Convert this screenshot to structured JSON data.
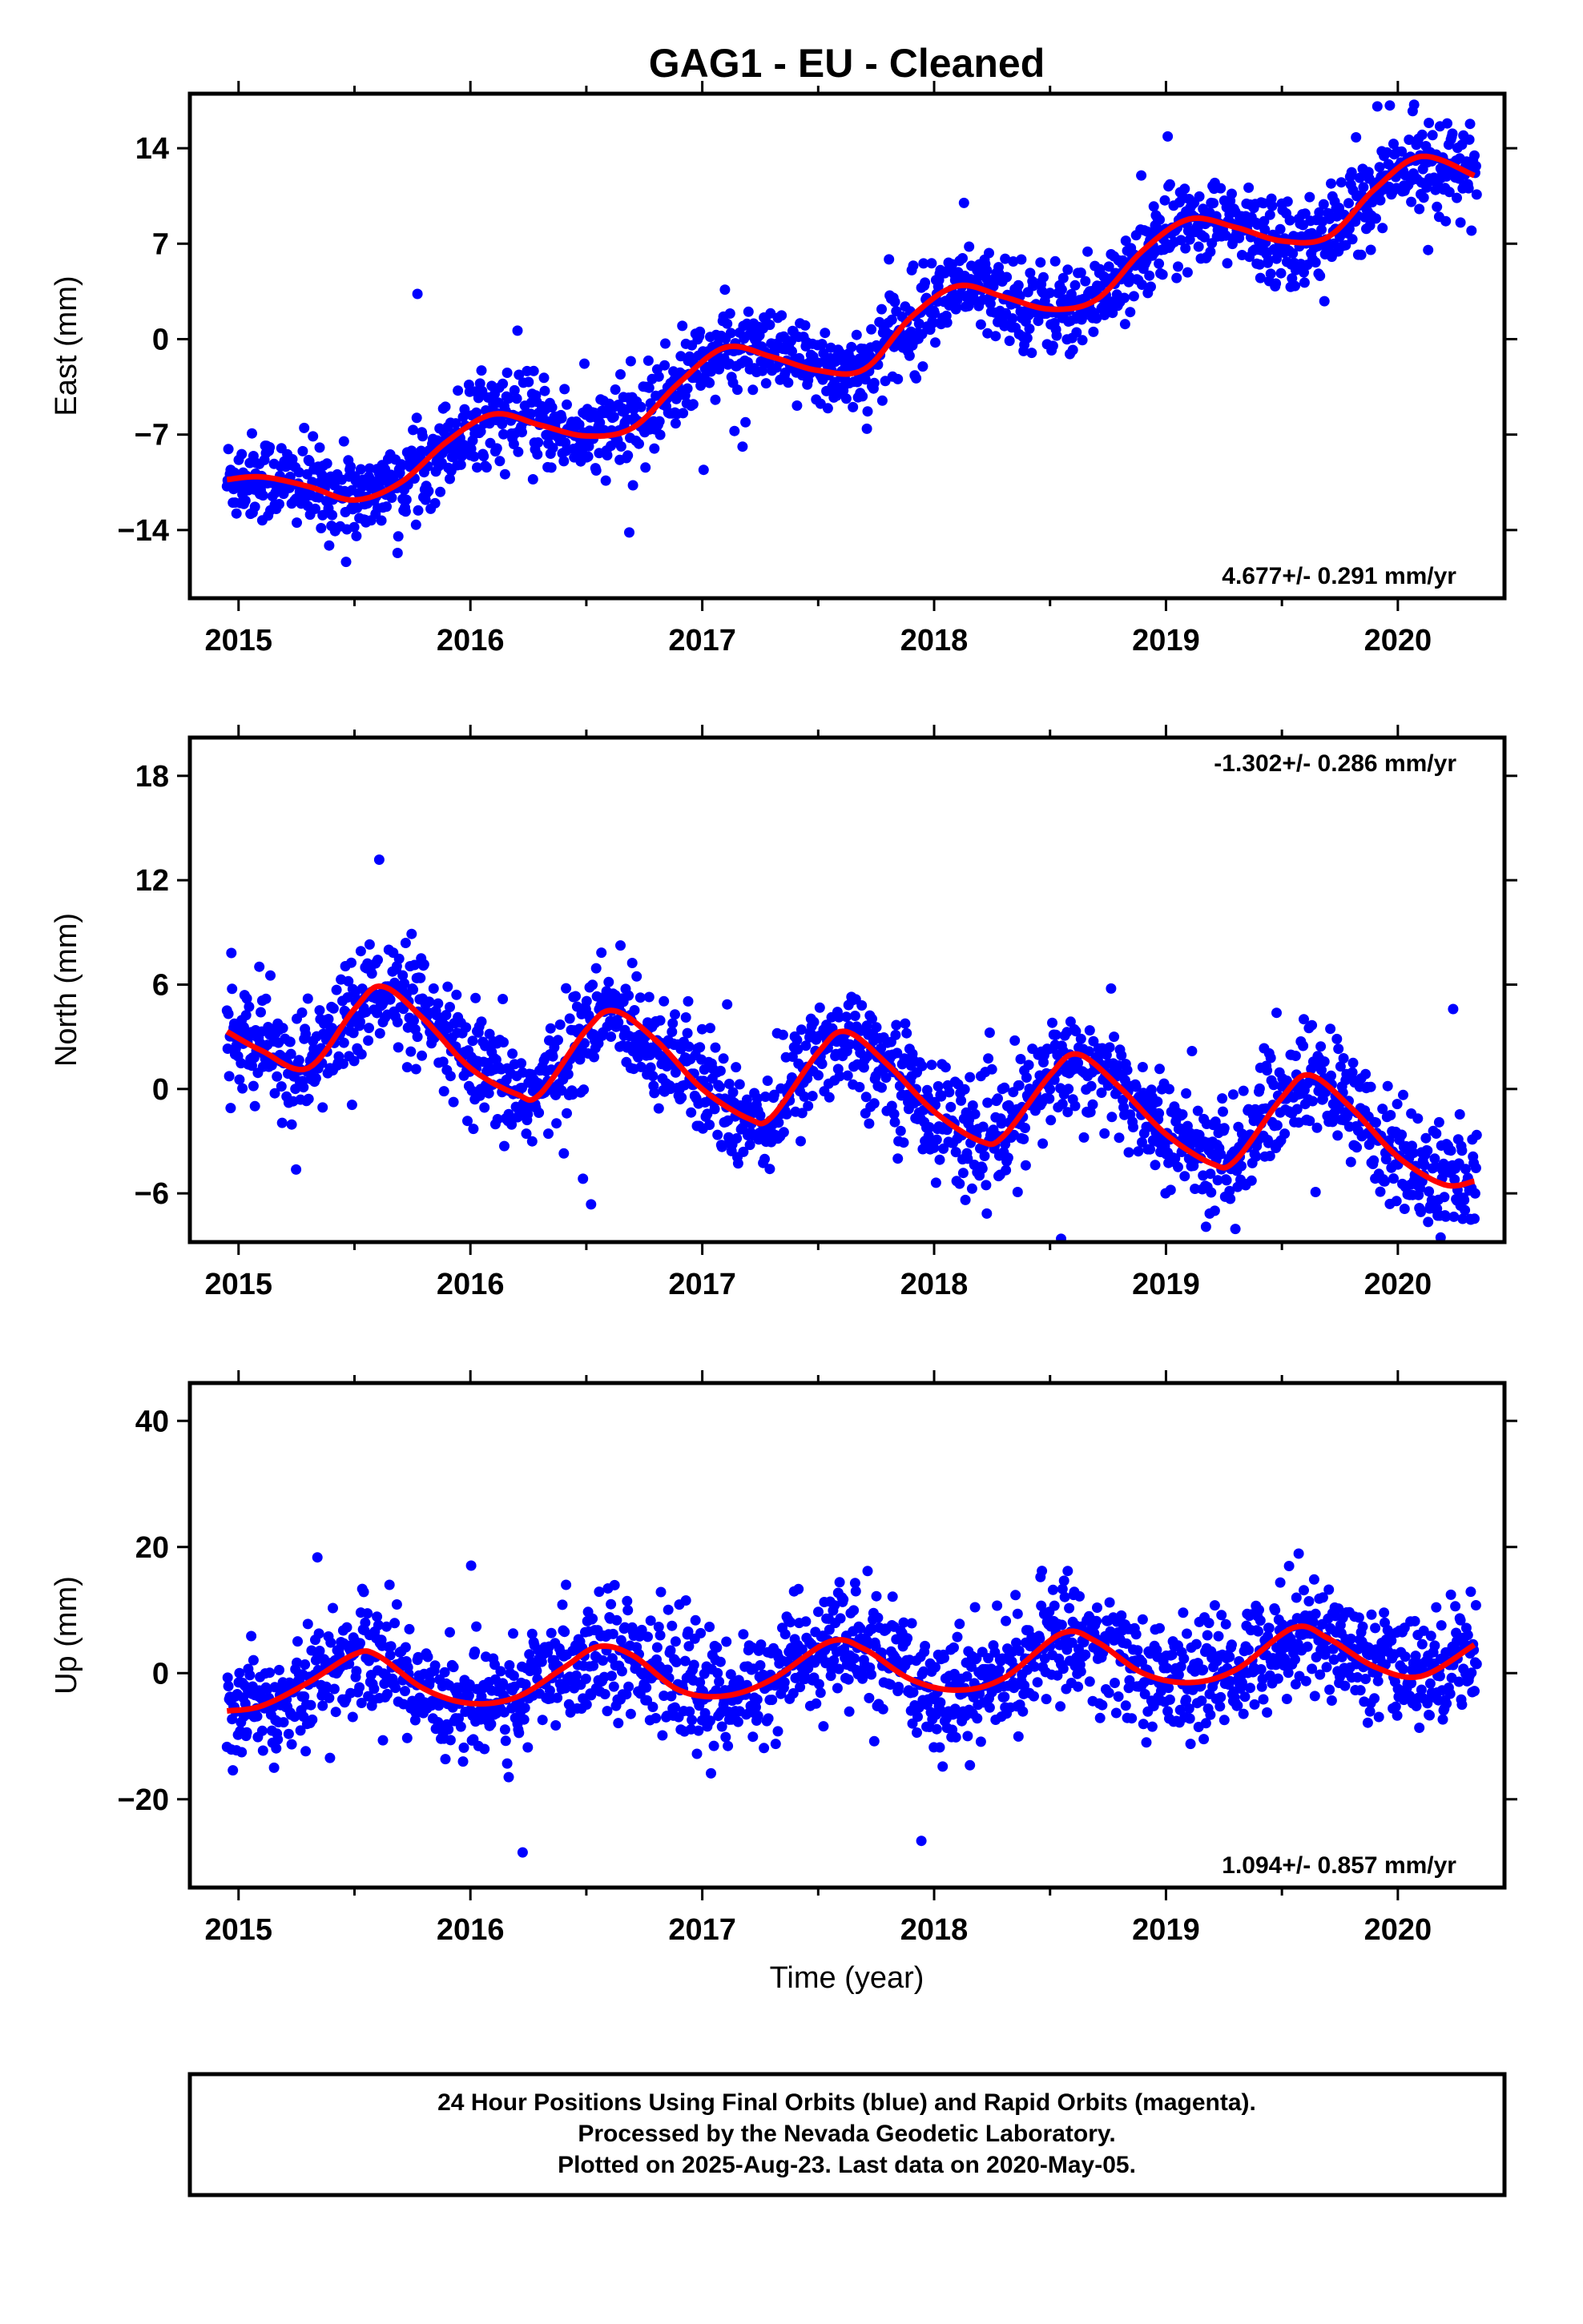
{
  "title": "GAG1  - EU - Cleaned",
  "colors": {
    "final_orbits": "#0000ff",
    "rapid_orbits": "#ff00ff",
    "model": "#ff0000",
    "frame": "#000000"
  },
  "footer": {
    "line1": "24 Hour Positions Using Final Orbits (blue) and Rapid Orbits (magenta).",
    "line2": "Processed by the Nevada Geodetic Laboratory.",
    "line3": "Plotted on 2025-Aug-23. Last data on 2020-May-05."
  },
  "chart_data": [
    {
      "type": "scatter",
      "component": "east",
      "ylabel": "East (mm)",
      "xlabel": "",
      "xlim": [
        2014.79,
        2020.46
      ],
      "ylim": [
        -19,
        18
      ],
      "xticks": [
        2015,
        2016,
        2017,
        2018,
        2019,
        2020
      ],
      "xtick_labels": [
        "2015",
        "2016",
        "2017",
        "2018",
        "2019",
        "2020"
      ],
      "yticks": [
        -14,
        -7,
        0,
        7,
        14
      ],
      "ytick_labels": [
        "−14",
        "−7",
        "0",
        "7",
        "14"
      ],
      "rate_label": "4.677+/- 0.291 mm/yr",
      "rate_position": "bottom-right",
      "model": {
        "offset": -10.5,
        "rate": 4.677,
        "t0": 2014.95,
        "sin_amp": 0.3,
        "cos_amp": 1.6,
        "sin2_amp": 0.0,
        "cos2_amp": 0.0
      },
      "model_curve": {
        "x": [
          2014.95,
          2015.1,
          2015.3,
          2015.5,
          2015.7,
          2015.9,
          2016.1,
          2016.3,
          2016.5,
          2016.7,
          2016.9,
          2017.1,
          2017.3,
          2017.5,
          2017.7,
          2017.9,
          2018.1,
          2018.3,
          2018.5,
          2018.7,
          2018.9,
          2019.1,
          2019.3,
          2019.5,
          2019.7,
          2019.9,
          2020.1,
          2020.33
        ],
        "y": [
          -10.3,
          -10.1,
          -10.8,
          -11.8,
          -10.5,
          -7.5,
          -5.5,
          -6.3,
          -7.1,
          -6.5,
          -3.2,
          -0.6,
          -1.3,
          -2.3,
          -2.2,
          1.6,
          3.9,
          3.1,
          2.2,
          2.9,
          6.5,
          8.8,
          8.2,
          7.2,
          7.5,
          11.0,
          13.4,
          12.0
        ]
      },
      "points_summary": {
        "count_approx": 1700,
        "start": 2014.95,
        "end": 2020.34,
        "scatter_mm": 1.6
      }
    },
    {
      "type": "scatter",
      "component": "north",
      "ylabel": "North (mm)",
      "xlabel": "",
      "xlim": [
        2014.79,
        2020.46
      ],
      "ylim": [
        -8.8,
        20.2
      ],
      "xticks": [
        2015,
        2016,
        2017,
        2018,
        2019,
        2020
      ],
      "xtick_labels": [
        "2015",
        "2016",
        "2017",
        "2018",
        "2019",
        "2020"
      ],
      "yticks": [
        -6,
        0,
        6,
        12,
        18
      ],
      "ytick_labels": [
        "−6",
        "0",
        "6",
        "12",
        "18"
      ],
      "rate_label": "-1.302+/- 0.286 mm/yr",
      "rate_position": "top-right",
      "model": {
        "offset": 1.45,
        "rate": -1.302,
        "t0": 2014.95,
        "sin_amp": 0.4,
        "cos_amp": -3.1,
        "sin2_amp": 0.0,
        "cos2_amp": 0.0
      },
      "model_curve": {
        "x": [
          2014.95,
          2015.1,
          2015.3,
          2015.5,
          2015.62,
          2015.8,
          2016.0,
          2016.2,
          2016.3,
          2016.5,
          2016.62,
          2016.8,
          2017.0,
          2017.2,
          2017.3,
          2017.5,
          2017.62,
          2017.8,
          2018.0,
          2018.2,
          2018.3,
          2018.5,
          2018.62,
          2018.8,
          2019.0,
          2019.2,
          2019.3,
          2019.5,
          2019.62,
          2019.8,
          2020.0,
          2020.2,
          2020.33
        ],
        "y": [
          3.3,
          2.2,
          1.2,
          4.6,
          5.9,
          4.0,
          1.2,
          -0.3,
          -0.3,
          3.4,
          4.5,
          2.8,
          0.0,
          -1.7,
          -1.6,
          2.1,
          3.3,
          1.4,
          -1.3,
          -3.0,
          -2.7,
          0.8,
          2.0,
          0.1,
          -2.6,
          -4.3,
          -4.1,
          -0.5,
          0.8,
          -1.1,
          -3.9,
          -5.5,
          -5.3
        ]
      },
      "points_summary": {
        "count_approx": 1700,
        "start": 2014.95,
        "end": 2020.34,
        "scatter_mm": 1.6
      }
    },
    {
      "type": "scatter",
      "component": "up",
      "ylabel": "Up (mm)",
      "xlabel": "Time (year)",
      "xlim": [
        2014.79,
        2020.46
      ],
      "ylim": [
        -34,
        46
      ],
      "xticks": [
        2015,
        2016,
        2017,
        2018,
        2019,
        2020
      ],
      "xtick_labels": [
        "2015",
        "2016",
        "2017",
        "2018",
        "2019",
        "2020"
      ],
      "yticks": [
        -20,
        0,
        20,
        40
      ],
      "ytick_labels": [
        "−20",
        "0",
        "20",
        "40"
      ],
      "rate_label": "1.094+/- 0.857 mm/yr",
      "rate_position": "bottom-right",
      "model": {
        "offset": -0.5,
        "rate": 1.094,
        "t0": 2014.95,
        "sin_amp": 4.2,
        "cos_amp": -1.5,
        "sin2_amp": 0.0,
        "cos2_amp": 0.0
      },
      "model_curve": {
        "x": [
          2014.95,
          2015.1,
          2015.3,
          2015.5,
          2015.6,
          2015.8,
          2016.0,
          2016.2,
          2016.4,
          2016.55,
          2016.7,
          2016.9,
          2017.1,
          2017.3,
          2017.55,
          2017.7,
          2017.9,
          2018.1,
          2018.3,
          2018.55,
          2018.7,
          2018.9,
          2019.1,
          2019.3,
          2019.55,
          2019.7,
          2019.9,
          2020.1,
          2020.33
        ],
        "y": [
          -6.0,
          -5.2,
          -1.5,
          3.0,
          2.8,
          -2.5,
          -4.8,
          -3.8,
          0.8,
          4.2,
          2.8,
          -2.7,
          -3.6,
          -1.0,
          5.0,
          3.8,
          -1.0,
          -2.7,
          -0.8,
          6.3,
          5.0,
          0.0,
          -1.5,
          0.5,
          7.2,
          5.5,
          1.0,
          -0.5,
          4.5
        ]
      },
      "points_summary": {
        "count_approx": 1700,
        "start": 2014.95,
        "end": 2020.34,
        "scatter_mm": 4.5
      }
    }
  ]
}
